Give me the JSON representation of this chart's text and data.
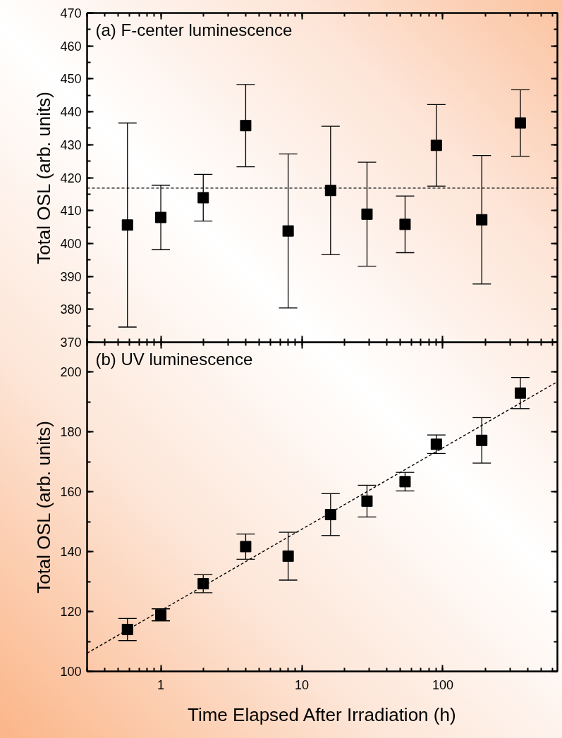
{
  "chart_data": [
    {
      "type": "scatter",
      "ylabel": "Total OSL (arb. units)",
      "annotations": [
        "(a) F-center luminescence"
      ],
      "log": "x",
      "grid": false,
      "marker": "square",
      "tick_labels": "y",
      "xlim": [
        0.3,
        650
      ],
      "xticks": [
        1,
        10,
        100
      ],
      "ylim": [
        370,
        470
      ],
      "yticks": [
        370,
        380,
        390,
        400,
        410,
        420,
        430,
        440,
        450,
        460,
        470
      ],
      "x": [
        0.58,
        1,
        2,
        4,
        8,
        16,
        29,
        54,
        90,
        189,
        355
      ],
      "series": [
        {
          "color": "#000000",
          "values": [
            405.6,
            407.9,
            413.9,
            435.8,
            403.8,
            416.1,
            408.9,
            405.8,
            429.8,
            407.2,
            436.6
          ],
          "errors": [
            31,
            9.8,
            7.1,
            12.5,
            23.4,
            19.5,
            15.8,
            8.6,
            12.4,
            19.5,
            10.1
          ]
        }
      ],
      "ref_lines": [
        {
          "axis": "y",
          "value": 416.8,
          "color": "#000000",
          "line_style": "dashed"
        }
      ]
    },
    {
      "type": "scatter",
      "ylabel": "Total OSL (arb. units)",
      "xlabel": "Time Elapsed After Irradiation (h)",
      "annotations": [
        "(b) UV luminescence"
      ],
      "log": "x",
      "grid": false,
      "marker": "square",
      "xlim": [
        0.3,
        650
      ],
      "xticks": [
        1,
        10,
        100
      ],
      "ylim": [
        100,
        210
      ],
      "yticks": [
        100,
        120,
        140,
        160,
        180,
        200
      ],
      "x": [
        0.58,
        1,
        2,
        4,
        8,
        16,
        29,
        54,
        90,
        189,
        355
      ],
      "series": [
        {
          "color": "#000000",
          "values": [
            114,
            118.9,
            129.3,
            141.7,
            138.5,
            152.4,
            156.9,
            163.4,
            175.9,
            177.2,
            193.0
          ],
          "errors": [
            3.7,
            2,
            3,
            4.2,
            8,
            7,
            5.3,
            3.1,
            3.1,
            7.6,
            5.2
          ]
        },
        {
          "type": "line",
          "color": "#000000",
          "line_style": "dashed",
          "marker": "none",
          "x": [
            0.3,
            650
          ],
          "values": [
            106.1,
            196.8
          ]
        }
      ]
    }
  ]
}
